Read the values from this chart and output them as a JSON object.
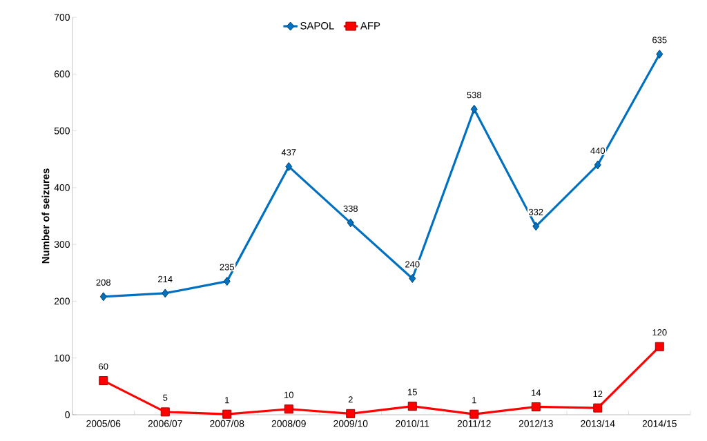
{
  "chart_data": {
    "type": "line",
    "ylabel": "Number of seizures",
    "categories": [
      "2005/06",
      "2006/07",
      "2007/08",
      "2008/09",
      "2009/10",
      "2010/11",
      "2011/12",
      "2012/13",
      "2013/14",
      "2014/15"
    ],
    "series": [
      {
        "name": "SAPOL",
        "color": "#0070c0",
        "marker": "diamond",
        "values": [
          208,
          214,
          235,
          437,
          338,
          240,
          538,
          332,
          440,
          635
        ]
      },
      {
        "name": "AFP",
        "color": "#ff0000",
        "marker": "square",
        "values": [
          60,
          5,
          1,
          10,
          2,
          15,
          1,
          14,
          12,
          120
        ]
      }
    ],
    "ylim": [
      0,
      700
    ],
    "yticks": [
      0,
      100,
      200,
      300,
      400,
      500,
      600,
      700
    ],
    "data_labels": true,
    "legend": "top",
    "grid": false,
    "line_style": "solid"
  }
}
